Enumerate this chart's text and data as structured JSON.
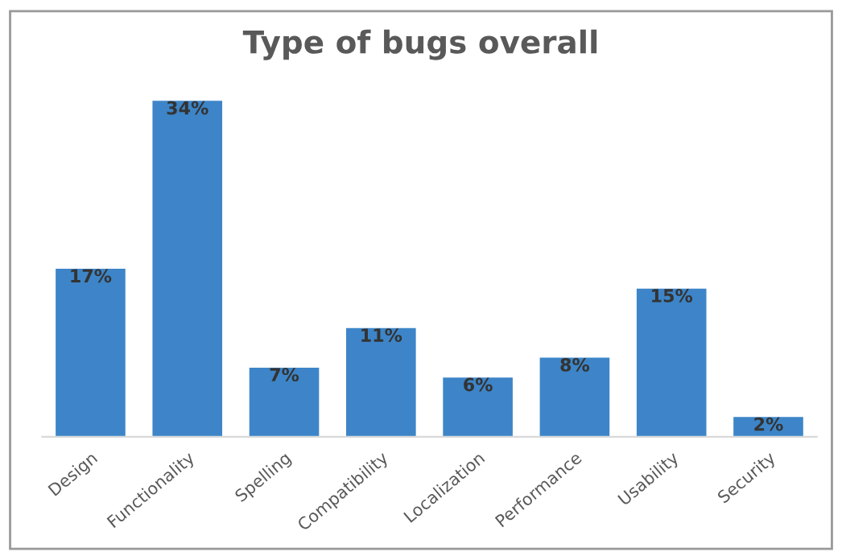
{
  "chart_data": {
    "type": "bar",
    "title": "Type of bugs overall",
    "categories": [
      "Design",
      "Functionality",
      "Spelling",
      "Compatibility",
      "Localization",
      "Performance",
      "Usability",
      "Security"
    ],
    "values": [
      17,
      34,
      7,
      11,
      6,
      8,
      15,
      2
    ],
    "value_labels": [
      "17%",
      "34%",
      "7%",
      "11%",
      "6%",
      "8%",
      "15%",
      "2%"
    ],
    "color": "#3d85c8",
    "grid": false,
    "legend": false
  }
}
